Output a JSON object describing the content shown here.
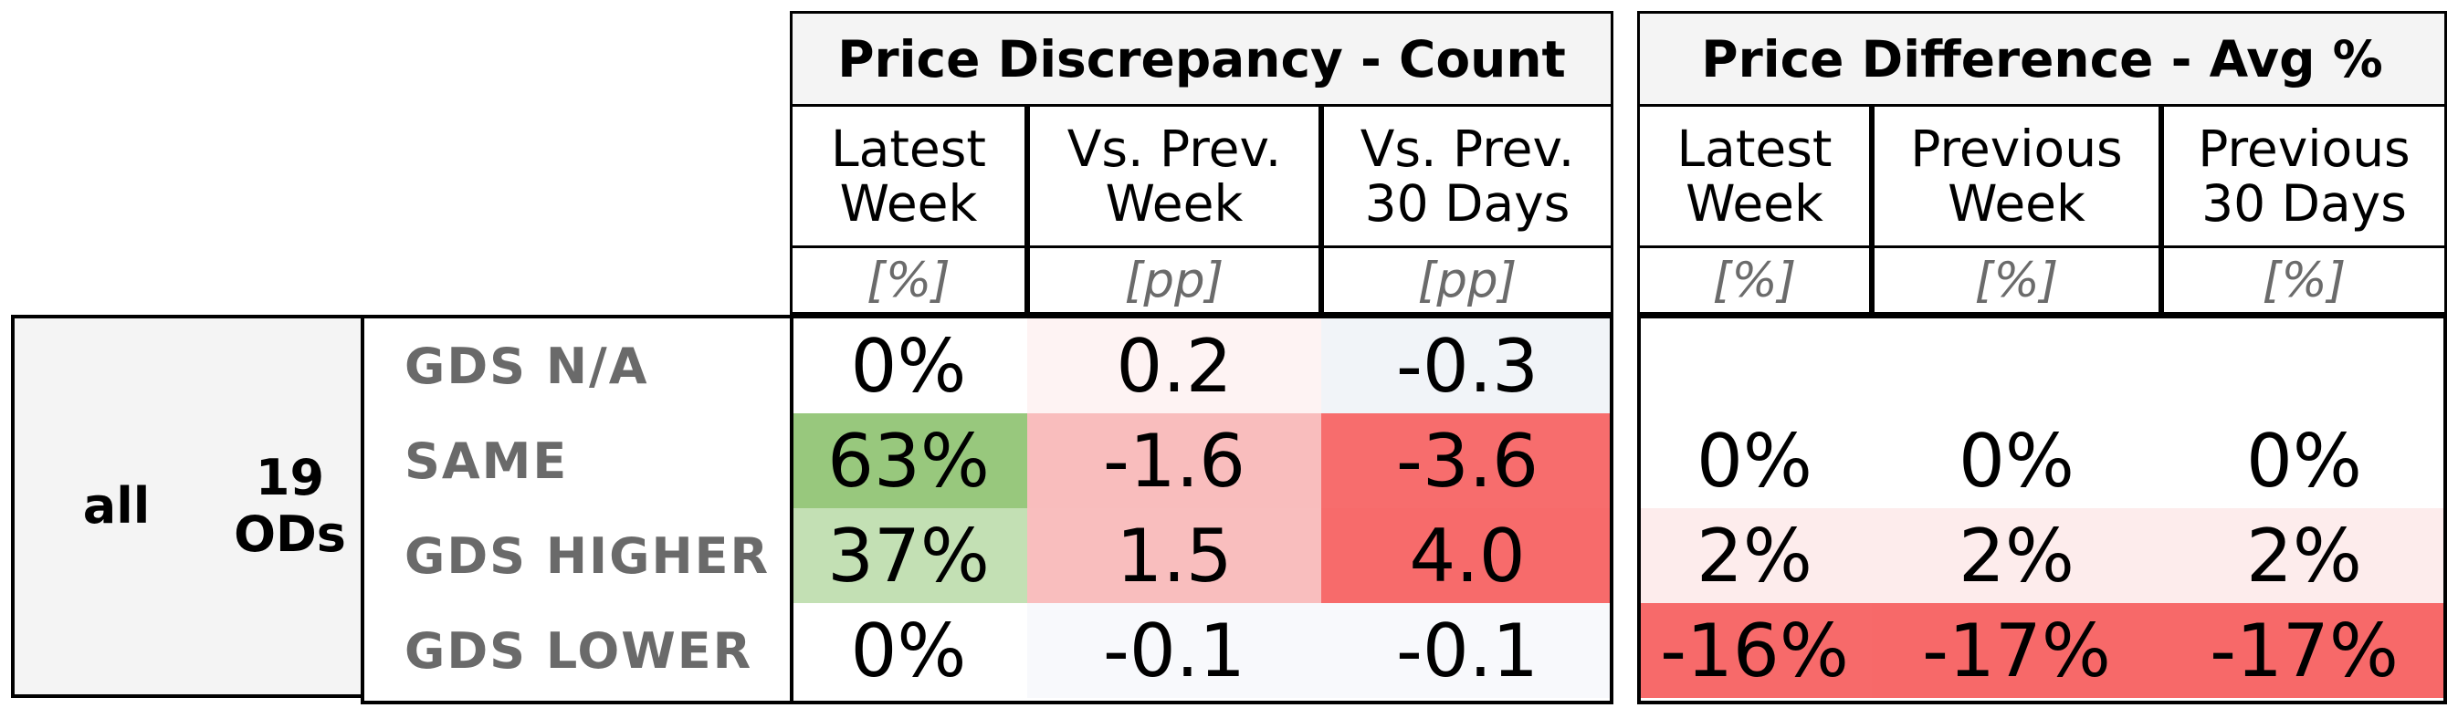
{
  "chart_data": {
    "type": "table",
    "group": {
      "segment": "all",
      "ods": "19\nODs"
    },
    "rows": [
      "GDS N/A",
      "SAME",
      "GDS HIGHER",
      "GDS LOWER"
    ],
    "tables": [
      {
        "title": "Price Discrepancy - Count",
        "columns": [
          {
            "label": "Latest\nWeek",
            "unit": "[%]"
          },
          {
            "label": "Vs. Prev.\nWeek",
            "unit": "[pp]"
          },
          {
            "label": "Vs. Prev.\n30 Days",
            "unit": "[pp]"
          }
        ],
        "cells": [
          [
            {
              "text": "0%",
              "color": "#ffffff"
            },
            {
              "text": "0.2",
              "color": "#fef3f3"
            },
            {
              "text": "-0.3",
              "color": "#f1f4f8"
            }
          ],
          [
            {
              "text": "63%",
              "color": "#98c87d"
            },
            {
              "text": "-1.6",
              "color": "#f9bdbd"
            },
            {
              "text": "-3.6",
              "color": "#f76d6d"
            }
          ],
          [
            {
              "text": "37%",
              "color": "#c3e0b4"
            },
            {
              "text": "1.5",
              "color": "#f9bebe"
            },
            {
              "text": "4.0",
              "color": "#f76b6b"
            }
          ],
          [
            {
              "text": "0%",
              "color": "#ffffff"
            },
            {
              "text": "-0.1",
              "color": "#f8f9fc"
            },
            {
              "text": "-0.1",
              "color": "#f8f9fc"
            }
          ]
        ]
      },
      {
        "title": "Price Difference - Avg %",
        "columns": [
          {
            "label": "Latest\nWeek",
            "unit": "[%]"
          },
          {
            "label": "Previous\nWeek",
            "unit": "[%]"
          },
          {
            "label": "Previous\n30 Days",
            "unit": "[%]"
          }
        ],
        "cells": [
          [
            {
              "text": "",
              "color": "#ffffff"
            },
            {
              "text": "",
              "color": "#ffffff"
            },
            {
              "text": "",
              "color": "#ffffff"
            }
          ],
          [
            {
              "text": "0%",
              "color": "#ffffff"
            },
            {
              "text": "0%",
              "color": "#ffffff"
            },
            {
              "text": "0%",
              "color": "#ffffff"
            }
          ],
          [
            {
              "text": "2%",
              "color": "#fdecec"
            },
            {
              "text": "2%",
              "color": "#fdecec"
            },
            {
              "text": "2%",
              "color": "#fdecec"
            }
          ],
          [
            {
              "text": "-16%",
              "color": "#f76a6a"
            },
            {
              "text": "-17%",
              "color": "#f76969"
            },
            {
              "text": "-17%",
              "color": "#f76969"
            }
          ]
        ]
      }
    ]
  }
}
